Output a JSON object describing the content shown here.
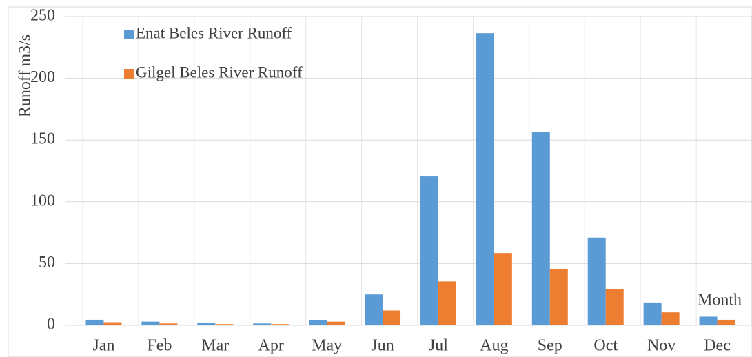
{
  "chart_data": {
    "type": "bar",
    "y_label": "Runoff m3/s",
    "x_label": "Month",
    "categories": [
      "Jan",
      "Feb",
      "Mar",
      "Apr",
      "May",
      "Jun",
      "Jul",
      "Aug",
      "Sep",
      "Oct",
      "Nov",
      "Dec"
    ],
    "series": [
      {
        "name": "Enat Beles River Runoff",
        "color": "#5b9bd5",
        "values": [
          4.5,
          3,
          2,
          1.5,
          4,
          25,
          120.5,
          236.5,
          156.5,
          71,
          18.5,
          7
        ]
      },
      {
        "name": "Gilgel Beles River Runoff",
        "color": "#ed7d31",
        "values": [
          2.5,
          1.5,
          1,
          1,
          3,
          12,
          35.5,
          58.5,
          45.5,
          29.5,
          10.5,
          4.5
        ]
      }
    ],
    "ylim": [
      0,
      250
    ],
    "yticks": [
      0,
      50,
      100,
      150,
      200,
      250
    ],
    "grid": true,
    "legend": "upper left"
  }
}
